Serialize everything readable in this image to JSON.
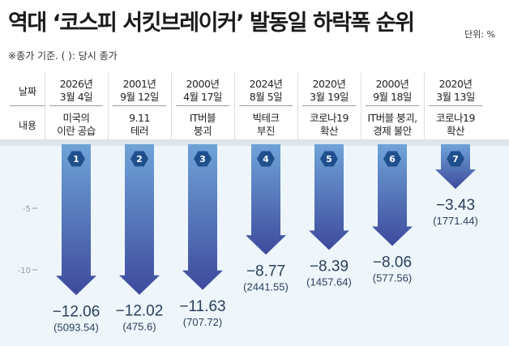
{
  "title": "역대 ‘코스피 서킷브레이커’ 발동일 하락폭 순위",
  "unit": "단위: %",
  "note": "※종가 기준. ( ): 당시 종가",
  "row_labels": {
    "date": "날짜",
    "content": "내용"
  },
  "colors": {
    "arrow_top": "#6fa3d8",
    "arrow_bottom": "#3e4a9c",
    "badge": "#1f4f8c",
    "background": "#eef6fc"
  },
  "chart_data": {
    "type": "bar",
    "orientation": "downward-arrows",
    "ylim": [
      0,
      -13
    ],
    "yticks": [
      "-5",
      "-10"
    ],
    "ytick_values": [
      -5,
      -10
    ],
    "categories": [
      {
        "rank": "1",
        "date_year": "2026년",
        "date_day": "3월 4일",
        "event_1": "미국의",
        "event_2": "이란 공습",
        "value": -12.06,
        "value_label": "−12.06",
        "close": "(5093.54)"
      },
      {
        "rank": "2",
        "date_year": "2001년",
        "date_day": "9월 12일",
        "event_1": "9.11",
        "event_2": "테러",
        "value": -12.02,
        "value_label": "−12.02",
        "close": "(475.6)"
      },
      {
        "rank": "3",
        "date_year": "2000년",
        "date_day": "4월 17일",
        "event_1": "IT버블",
        "event_2": "붕괴",
        "value": -11.63,
        "value_label": "−11.63",
        "close": "(707.72)"
      },
      {
        "rank": "4",
        "date_year": "2024년",
        "date_day": "8월 5일",
        "event_1": "빅테크",
        "event_2": "부진",
        "value": -8.77,
        "value_label": "−8.77",
        "close": "(2441.55)"
      },
      {
        "rank": "5",
        "date_year": "2020년",
        "date_day": "3월 19일",
        "event_1": "코로나19",
        "event_2": "확산",
        "value": -8.39,
        "value_label": "−8.39",
        "close": "(1457.64)"
      },
      {
        "rank": "6",
        "date_year": "2000년",
        "date_day": "9월 18일",
        "event_1": "IT버블 붕괴,",
        "event_2": "경제 불안",
        "value": -8.06,
        "value_label": "−8.06",
        "close": "(577.56)"
      },
      {
        "rank": "7",
        "date_year": "2020년",
        "date_day": "3월 13일",
        "event_1": "코로나19",
        "event_2": "확산",
        "value": -3.43,
        "value_label": "−3.43",
        "close": "(1771.44)"
      }
    ]
  }
}
